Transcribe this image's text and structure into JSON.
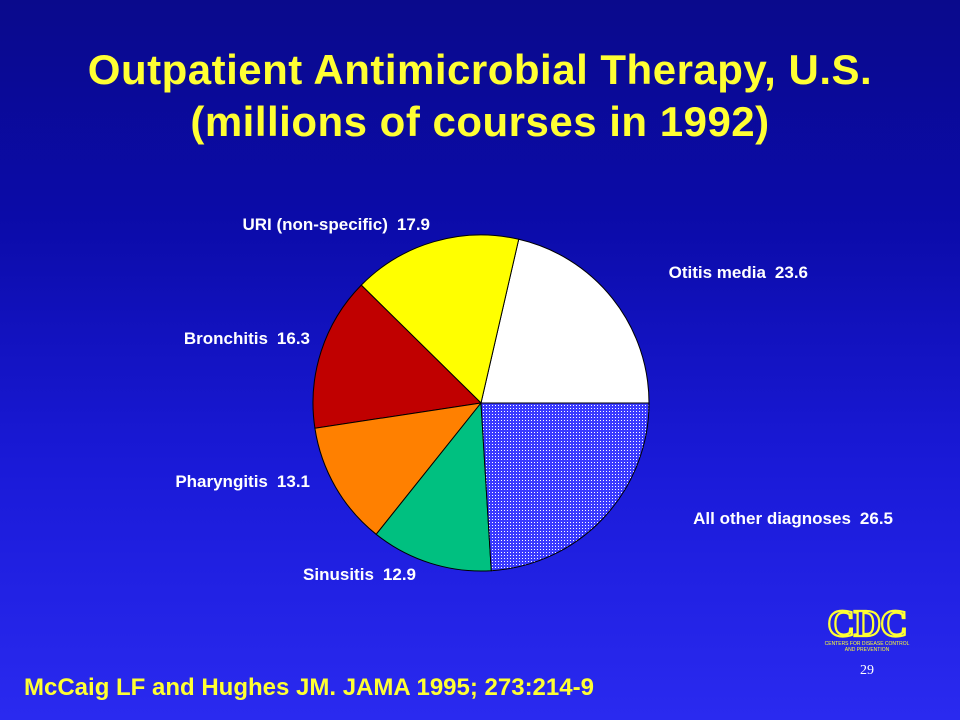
{
  "title": {
    "line1": "Outpatient Antimicrobial Therapy, U.S.",
    "line2": "(millions of courses in 1992)"
  },
  "citation": "McCaig LF and Hughes JM. JAMA 1995; 273:214-9",
  "page_number": "29",
  "logo": {
    "text": "CDC",
    "subtitle_line1": "CENTERS FOR DISEASE CONTROL",
    "subtitle_line2": "AND PREVENTION"
  },
  "colors": {
    "title": "#ffff33",
    "background_top": "#0a0a8c",
    "background_bottom": "#2a2af0",
    "labels": "#ffffff"
  },
  "chart_data": {
    "type": "pie",
    "title": "Outpatient Antimicrobial Therapy, U.S. (millions of courses in 1992)",
    "units": "millions of courses",
    "start": "3 o'clock, counter-clockwise",
    "slices": [
      {
        "label": "Otitis media",
        "value": 23.6,
        "color": "#ffffff",
        "pattern": "none"
      },
      {
        "label": "URI (non-specific)",
        "value": 17.9,
        "color": "#ffff00",
        "pattern": "none"
      },
      {
        "label": "Bronchitis",
        "value": 16.3,
        "color": "#c00000",
        "pattern": "none"
      },
      {
        "label": "Pharyngitis",
        "value": 13.1,
        "color": "#ff8000",
        "pattern": "none"
      },
      {
        "label": "Sinusitis",
        "value": 12.9,
        "color": "#00c080",
        "pattern": "none"
      },
      {
        "label": "All other diagnoses",
        "value": 26.5,
        "color": "#3a3aff",
        "pattern": "dots"
      }
    ]
  }
}
